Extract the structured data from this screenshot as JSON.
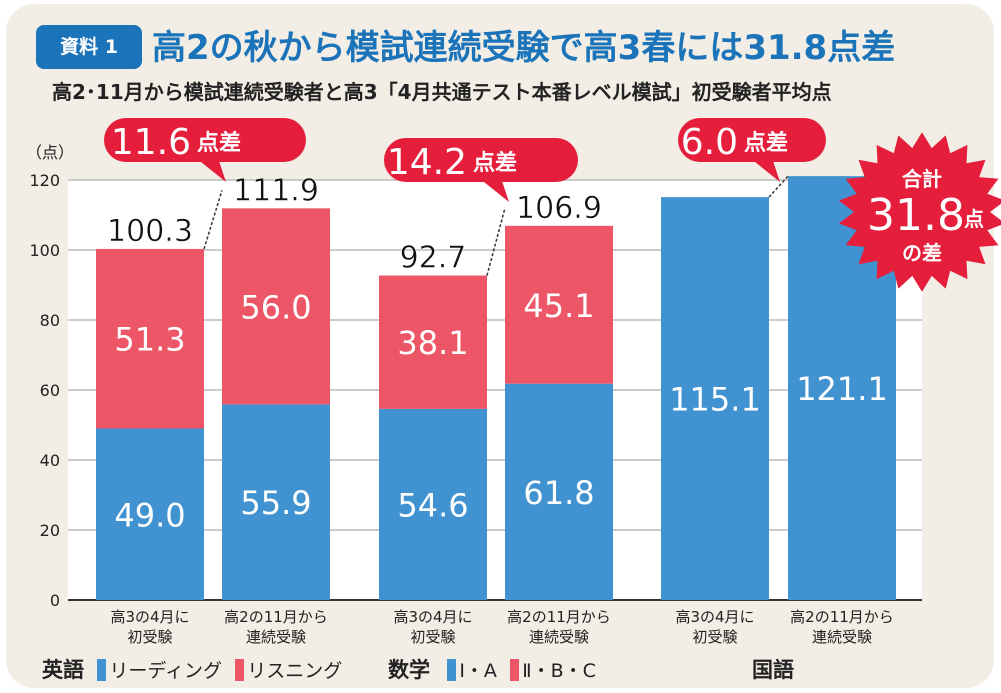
{
  "header": {
    "badge": "資料 1",
    "title": "高2の秋から模試連続受験で高3春には31.8点差",
    "subtitle": "高2･11月から模試連続受験者と高3「4月共通テスト本番レベル模試」初受験者平均点"
  },
  "colors": {
    "blue": "#4192d0",
    "red": "#ec5666",
    "accent": "#e51f3b",
    "title": "#1b73b9"
  },
  "chart_data": {
    "type": "bar",
    "stacked": true,
    "ylabel": "（点）",
    "ylim": [
      0,
      120
    ],
    "yticks": [
      0,
      20,
      40,
      60,
      80,
      100,
      120
    ],
    "grid": true,
    "groups": [
      {
        "subject": "英語",
        "bars": [
          {
            "label": [
              "高3の4月に",
              "初受験"
            ],
            "segments": [
              49.0,
              51.3
            ],
            "total": "100.3"
          },
          {
            "label": [
              "高2の11月から",
              "連続受験"
            ],
            "segments": [
              55.9,
              56.0
            ],
            "total": "111.9"
          }
        ],
        "diff": "11.6",
        "diff_unit": "点差"
      },
      {
        "subject": "数学",
        "bars": [
          {
            "label": [
              "高3の4月に",
              "初受験"
            ],
            "segments": [
              54.6,
              38.1
            ],
            "total": "92.7"
          },
          {
            "label": [
              "高2の11月から",
              "連続受験"
            ],
            "segments": [
              61.8,
              45.1
            ],
            "total": "106.9"
          }
        ],
        "diff": "14.2",
        "diff_unit": "点差"
      },
      {
        "subject": "国語",
        "bars": [
          {
            "label": [
              "高3の4月に",
              "初受験"
            ],
            "segments": [
              115.1
            ]
          },
          {
            "label": [
              "高2の11月から",
              "連続受験"
            ],
            "segments": [
              121.1
            ]
          }
        ],
        "diff": "6.0",
        "diff_unit": "点差"
      }
    ],
    "total_burst": {
      "top": "合計",
      "value": "31.8",
      "unit": "点",
      "bottom": "の差"
    },
    "legend": {
      "english": "英語",
      "english_items": [
        "リーディング",
        "リスニング"
      ],
      "math": "数学",
      "math_items": [
        "Ⅰ・A",
        "Ⅱ・B・C"
      ],
      "japanese": "国語"
    }
  }
}
